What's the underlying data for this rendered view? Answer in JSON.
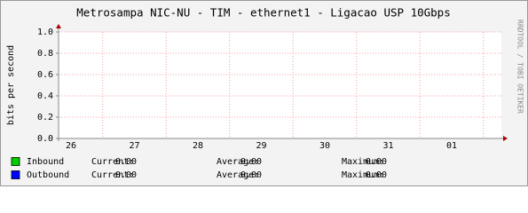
{
  "chart_data": {
    "type": "line",
    "title": "Metrosampa NIC-NU - TIM - ethernet1 - Ligacao USP 10Gbps",
    "y_label": "bits per second",
    "watermark": "RRDTOOL / TOBI OETIKER",
    "categories": [
      "26",
      "27",
      "28",
      "29",
      "30",
      "31",
      "01"
    ],
    "ylim": [
      0,
      1
    ],
    "yticks": [
      {
        "value": 0,
        "label": "0.0"
      },
      0.2,
      0.4,
      0.6,
      0.8,
      {
        "value": 1,
        "label": "1.0"
      }
    ],
    "grid": true,
    "stat_names": [
      "Current:",
      "Average:",
      "Maximum:"
    ],
    "series": [
      {
        "name": "Inbound",
        "color": "#00cc00",
        "stats": [
          0,
          0,
          0
        ],
        "value_labels": [
          "0.00",
          "0.00",
          "0.00"
        ]
      },
      {
        "name": "Outbound",
        "color": "#0000ff",
        "stats": [
          0,
          0,
          0
        ],
        "value_labels": [
          "0.00",
          "0.00",
          "0.00"
        ]
      }
    ]
  }
}
